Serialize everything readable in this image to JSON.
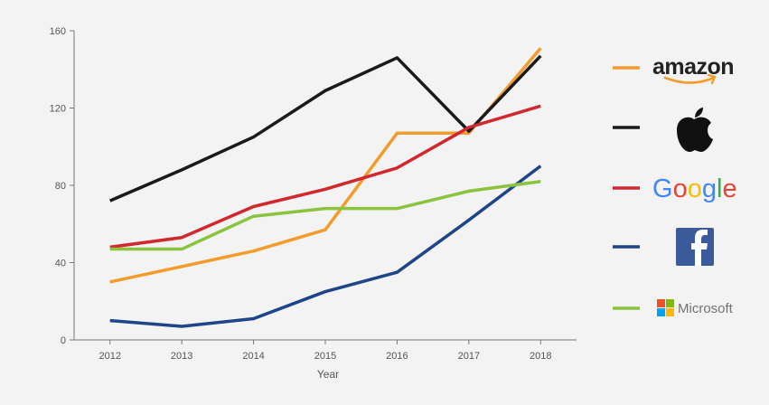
{
  "chart_data": {
    "type": "line",
    "title": "",
    "xlabel": "Year",
    "ylabel": "",
    "x": [
      2012,
      2013,
      2014,
      2015,
      2016,
      2017,
      2018
    ],
    "ylim": [
      0,
      160
    ],
    "yticks": [
      0,
      40,
      80,
      120,
      160
    ],
    "grid": false,
    "legend_position": "right",
    "series": [
      {
        "name": "amazon",
        "color": "#f39c2c",
        "values": [
          30,
          38,
          46,
          57,
          107,
          107,
          151
        ],
        "icon": "amazon-logo-icon"
      },
      {
        "name": "",
        "color": "#1a1a1a",
        "values": [
          72,
          88,
          105,
          129,
          146,
          108,
          147
        ],
        "icon": "apple-logo-icon"
      },
      {
        "name": "Google",
        "color": "#d0282e",
        "values": [
          48,
          53,
          69,
          78,
          89,
          110,
          121
        ],
        "icon": "google-logo-icon"
      },
      {
        "name": "",
        "color": "#1f4589",
        "values": [
          10,
          7,
          11,
          25,
          35,
          62,
          90
        ],
        "icon": "facebook-logo-icon"
      },
      {
        "name": "Microsoft",
        "color": "#8ac43f",
        "values": [
          47,
          47,
          64,
          68,
          68,
          77,
          82
        ],
        "icon": "microsoft-logo-icon"
      }
    ]
  }
}
